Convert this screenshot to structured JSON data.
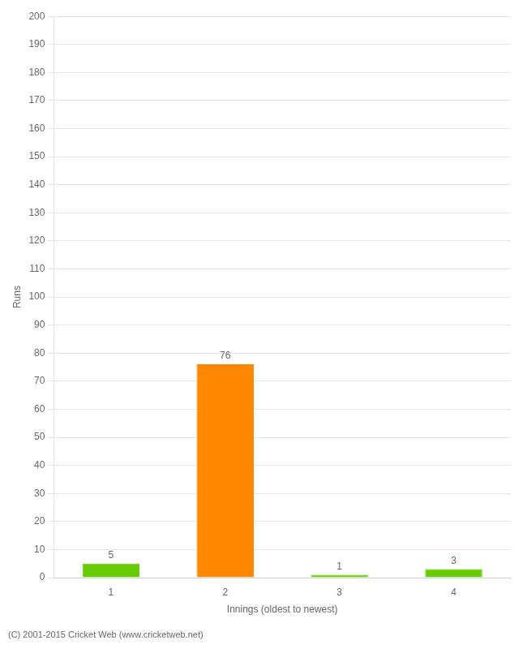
{
  "chart_data": {
    "type": "bar",
    "categories": [
      1,
      2,
      3,
      4
    ],
    "values": [
      5,
      76,
      1,
      3
    ],
    "colors": [
      "#66cc00",
      "#ff8800",
      "#66cc00",
      "#66cc00"
    ],
    "xlabel": "Innings (oldest to newest)",
    "ylabel": "Runs",
    "ylim": [
      0,
      200
    ],
    "yticks": [
      0,
      10,
      20,
      30,
      40,
      50,
      60,
      70,
      80,
      90,
      100,
      110,
      120,
      130,
      140,
      150,
      160,
      170,
      180,
      190,
      200
    ],
    "grid": true,
    "data_labels": true,
    "footer": "(C) 2001-2015 Cricket Web (www.cricketweb.net)"
  }
}
